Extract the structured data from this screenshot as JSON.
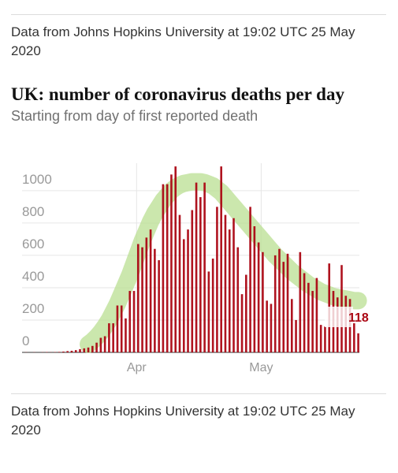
{
  "header": {
    "source": "Data from Johns Hopkins University at 19:02 UTC 25 May 2020"
  },
  "chart_data": {
    "type": "bar",
    "title": "UK: number of coronavirus deaths per day",
    "subtitle": "Starting from day of first reported death",
    "categories": [
      null,
      null,
      null,
      null,
      null,
      null,
      null,
      null,
      null,
      null,
      null,
      null,
      null,
      null,
      null,
      null,
      null,
      null,
      null,
      null,
      null,
      null,
      null,
      null,
      null,
      null,
      null,
      "Apr",
      null,
      null,
      null,
      null,
      null,
      null,
      null,
      null,
      null,
      null,
      null,
      null,
      null,
      null,
      null,
      null,
      null,
      null,
      null,
      null,
      null,
      null,
      null,
      null,
      null,
      null,
      null,
      null,
      null,
      "May",
      null,
      null,
      null,
      null,
      null,
      null,
      null,
      null,
      null,
      null,
      null,
      null,
      null,
      null,
      null,
      null,
      null,
      null,
      null,
      null,
      null,
      null,
      null
    ],
    "series": [
      {
        "type": "bar",
        "color": "#ab0613",
        "values": [
          1,
          0,
          1,
          0,
          1,
          2,
          1,
          2,
          3,
          5,
          8,
          10,
          14,
          20,
          25,
          30,
          40,
          60,
          90,
          100,
          180,
          180,
          290,
          290,
          210,
          380,
          380,
          670,
          650,
          710,
          760,
          640,
          570,
          1040,
          1040,
          1100,
          1150,
          850,
          700,
          760,
          880,
          1050,
          960,
          1050,
          500,
          580,
          900,
          1150,
          850,
          760,
          830,
          650,
          360,
          480,
          900,
          780,
          680,
          620,
          320,
          300,
          600,
          640,
          560,
          610,
          330,
          200,
          620,
          490,
          430,
          380,
          460,
          170,
          160,
          550,
          380,
          340,
          540,
          350,
          330,
          180,
          118
        ]
      },
      {
        "type": "line",
        "color": "#b9df92",
        "values": [
          null,
          null,
          null,
          null,
          null,
          null,
          null,
          null,
          null,
          null,
          null,
          null,
          null,
          null,
          null,
          50,
          70,
          95,
          125,
          160,
          200,
          250,
          300,
          360,
          420,
          480,
          550,
          620,
          690,
          750,
          810,
          860,
          900,
          940,
          970,
          1000,
          1020,
          1035,
          1045,
          1050,
          1055,
          1055,
          1055,
          1050,
          1040,
          1030,
          1010,
          990,
          960,
          930,
          900,
          870,
          840,
          810,
          780,
          750,
          720,
          690,
          660,
          630,
          600,
          575,
          550,
          525,
          500,
          480,
          460,
          440,
          420,
          405,
          390,
          375,
          365,
          355,
          345,
          340,
          335,
          330,
          325,
          320,
          320
        ]
      }
    ],
    "ylim": [
      0,
      1170
    ],
    "yticks": [
      0,
      200,
      400,
      600,
      800,
      1000
    ],
    "grid": true
  },
  "footer": {
    "source": "Data from Johns Hopkins University at 19:02 UTC 25 May 2020"
  }
}
